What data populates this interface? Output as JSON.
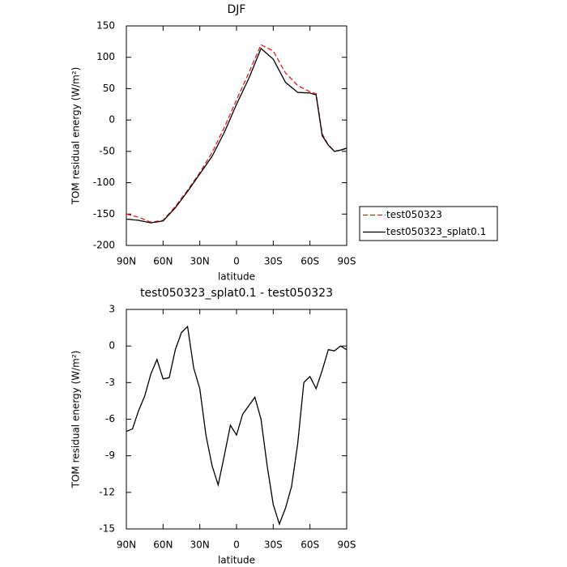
{
  "chart_data": [
    {
      "type": "line",
      "title": "DJF",
      "x_label": "latitude",
      "y_label": "TOM residual energy (W/m²)",
      "x": [
        90,
        80,
        70,
        60,
        50,
        40,
        30,
        20,
        10,
        0,
        -10,
        -20,
        -30,
        -40,
        -50,
        -60,
        -65,
        -70,
        -75,
        -80,
        -85,
        -90
      ],
      "series": [
        {
          "name": "test050323",
          "color": "#e41a1c",
          "line_style": "dashed",
          "values": [
            -150,
            -155,
            -163,
            -160,
            -138,
            -112,
            -84,
            -52,
            -12,
            32,
            75,
            120,
            110,
            75,
            55,
            45,
            42,
            -22,
            -40,
            -50,
            -48,
            -45
          ]
        },
        {
          "name": "test050323_splat0.1",
          "color": "#000000",
          "line_style": "solid",
          "values": [
            -158,
            -160,
            -164,
            -161,
            -140,
            -114,
            -86,
            -58,
            -20,
            25,
            66,
            114,
            97,
            60,
            44,
            43,
            40,
            -25,
            -40,
            -50,
            -48,
            -45
          ]
        }
      ],
      "xlim": [
        90,
        -90
      ],
      "xticks": [
        {
          "value": 90,
          "label": "90N"
        },
        {
          "value": 60,
          "label": "60N"
        },
        {
          "value": 30,
          "label": "30N"
        },
        0,
        {
          "value": -30,
          "label": "30S"
        },
        {
          "value": -60,
          "label": "60S"
        },
        {
          "value": -90,
          "label": "90S"
        }
      ],
      "ylim": [
        -200,
        150
      ],
      "yticks": [
        -200,
        -150,
        -100,
        -50,
        0,
        50,
        100,
        150
      ],
      "legend": "right",
      "grid": false
    },
    {
      "type": "line",
      "title": "test050323_splat0.1 - test050323",
      "x_label": "latitude",
      "y_label": "TOM residual energy (W/m²)",
      "x": [
        90,
        85,
        80,
        75,
        70,
        65,
        60,
        55,
        50,
        45,
        40,
        35,
        30,
        25,
        20,
        15,
        10,
        5,
        0,
        -5,
        -10,
        -15,
        -20,
        -25,
        -30,
        -35,
        -40,
        -45,
        -50,
        -55,
        -60,
        -65,
        -70,
        -75,
        -80,
        -85,
        -90
      ],
      "series": [
        {
          "color": "#000000",
          "line_style": "solid",
          "values": [
            -7,
            -6.8,
            -5.3,
            -4.1,
            -2.3,
            -1.1,
            -2.7,
            -2.6,
            -0.3,
            1.1,
            1.6,
            -1.8,
            -3.5,
            -7.3,
            -9.8,
            -11.4,
            -9,
            -6.5,
            -7.3,
            -5.6,
            -4.9,
            -4.2,
            -6,
            -9.8,
            -13,
            -14.6,
            -13.3,
            -11.5,
            -8,
            -3,
            -2.5,
            -3.5,
            -2,
            -0.3,
            -0.4,
            0,
            -0.3
          ]
        }
      ],
      "xlim": [
        90,
        -90
      ],
      "xticks": [
        {
          "value": 90,
          "label": "90N"
        },
        {
          "value": 60,
          "label": "60N"
        },
        {
          "value": 30,
          "label": "30N"
        },
        0,
        {
          "value": -30,
          "label": "30S"
        },
        {
          "value": -60,
          "label": "60S"
        },
        {
          "value": -90,
          "label": "90S"
        }
      ],
      "ylim": [
        -15,
        3
      ],
      "yticks": [
        -15,
        -12,
        -9,
        -6,
        -3,
        0,
        3
      ],
      "grid": false
    }
  ]
}
